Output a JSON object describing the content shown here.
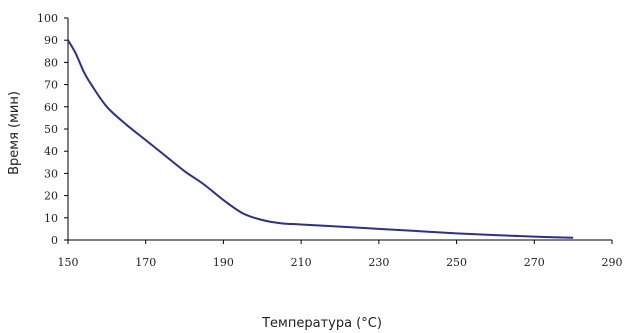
{
  "chart_data": {
    "type": "line",
    "title": "",
    "xlabel": "Температура (°C)",
    "ylabel": "Время (мин)",
    "xlim": [
      150,
      290
    ],
    "ylim": [
      0,
      100
    ],
    "x_ticks": [
      "150",
      "170",
      "190",
      "210",
      "230",
      "250",
      "270",
      "290"
    ],
    "y_ticks": [
      "0",
      "10",
      "20",
      "30",
      "40",
      "50",
      "60",
      "70",
      "80",
      "90",
      "100"
    ],
    "grid": false,
    "legend": "none",
    "series": [
      {
        "color": "#2b2f8f",
        "x": [
          150,
          152,
          154,
          156,
          160,
          165,
          170,
          175,
          180,
          185,
          190,
          195,
          200,
          205,
          210,
          220,
          230,
          240,
          250,
          260,
          270,
          280
        ],
        "y": [
          90,
          84,
          76,
          70,
          60,
          52,
          45,
          38,
          31,
          25,
          18,
          12,
          9,
          7.5,
          7,
          6,
          5,
          4,
          3,
          2.2,
          1.5,
          1
        ]
      }
    ]
  }
}
